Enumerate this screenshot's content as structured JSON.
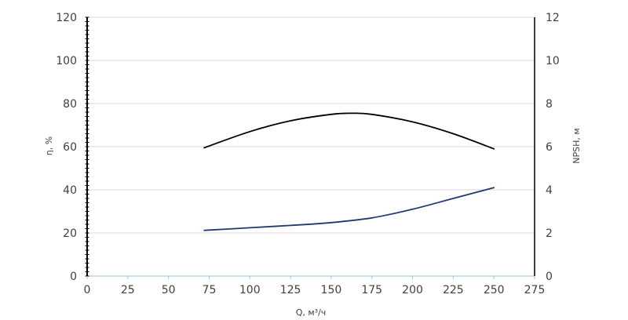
{
  "chart_data": {
    "type": "line",
    "xlabel": "Q, м³/ч",
    "ylabel_left": "η, %",
    "ylabel_right": "NPSH, м",
    "xlim": [
      0,
      275
    ],
    "ylim_left": [
      0,
      120
    ],
    "ylim_right": [
      0,
      12
    ],
    "x_ticks": [
      0,
      25,
      50,
      75,
      100,
      125,
      150,
      175,
      200,
      225,
      250,
      275
    ],
    "y_left_ticks": [
      0,
      20,
      40,
      60,
      80,
      100,
      120
    ],
    "y_right_ticks": [
      0,
      2,
      4,
      6,
      8,
      10,
      12
    ],
    "grid": "horizontal",
    "series": [
      {
        "axis": "left",
        "color": "#000000",
        "points": [
          [
            72,
            59.5
          ],
          [
            100,
            67
          ],
          [
            125,
            72
          ],
          [
            150,
            75
          ],
          [
            163,
            75.5
          ],
          [
            175,
            75
          ],
          [
            200,
            71.5
          ],
          [
            225,
            66
          ],
          [
            250,
            59
          ]
        ]
      },
      {
        "axis": "right",
        "color": "#1f3a6e",
        "points": [
          [
            72,
            2.12
          ],
          [
            100,
            2.24
          ],
          [
            125,
            2.35
          ],
          [
            150,
            2.48
          ],
          [
            175,
            2.7
          ],
          [
            200,
            3.1
          ],
          [
            225,
            3.6
          ],
          [
            250,
            4.1
          ]
        ]
      }
    ]
  }
}
